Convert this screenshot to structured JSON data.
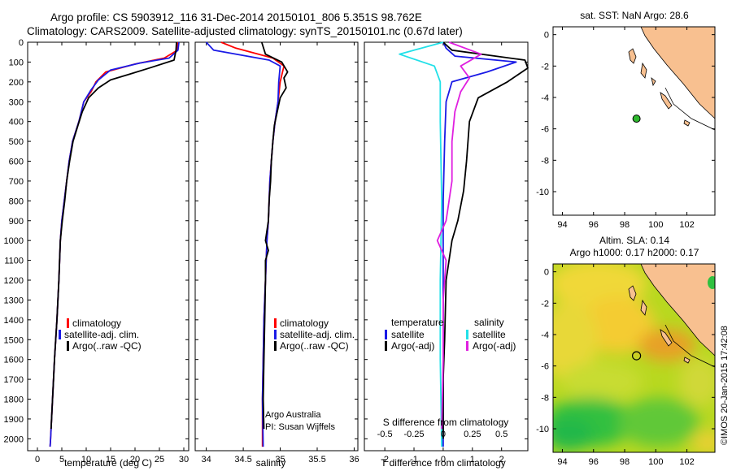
{
  "header": {
    "title_line1": "Argo profile: CS 5903912_116 31-Dec-2014 20150101_806 5.351S 98.762E",
    "title_line2": "Climatology: CARS2009. Satellite-adjusted climatology: synTS_20150101.nc (0.67d later)"
  },
  "colors": {
    "climatology": "#ff0000",
    "satellite": "#1a1ae6",
    "argo": "#000000",
    "salinity_satellite": "#22e0e8",
    "salinity_argo": "#e020e0",
    "land": "#f8c090",
    "dot": "#2eb82e"
  },
  "chart_data": [
    {
      "type": "line",
      "id": "temperature",
      "xlabel": "temperature (deg C)",
      "xlim": [
        -2,
        31
      ],
      "xticks": [
        0,
        5,
        10,
        15,
        20,
        25,
        30
      ],
      "ylim": [
        2060,
        0
      ],
      "yticks": [
        0,
        100,
        200,
        300,
        400,
        500,
        600,
        700,
        800,
        900,
        1000,
        1100,
        1200,
        1300,
        1400,
        1500,
        1600,
        1700,
        1800,
        1900,
        2000
      ],
      "legend": [
        "climatology",
        "satellite-adj. clim.",
        "Argo(..raw -QC)"
      ],
      "series": [
        {
          "name": "climatology",
          "color": "#ff0000",
          "points": [
            [
              28.8,
              0
            ],
            [
              28.7,
              40
            ],
            [
              26,
              80
            ],
            [
              20,
              110
            ],
            [
              14,
              150
            ],
            [
              12,
              200
            ],
            [
              11,
              250
            ],
            [
              9.5,
              300
            ],
            [
              8.5,
              400
            ],
            [
              7.2,
              500
            ],
            [
              6.5,
              600
            ],
            [
              6,
              700
            ],
            [
              5.5,
              800
            ],
            [
              5,
              900
            ],
            [
              4.7,
              1000
            ],
            [
              4.4,
              1200
            ],
            [
              4,
              1400
            ],
            [
              3.5,
              1600
            ],
            [
              3.1,
              1800
            ],
            [
              2.7,
              2000
            ],
            [
              2.6,
              2040
            ]
          ]
        },
        {
          "name": "satellite-adj. clim.",
          "color": "#1a1ae6",
          "points": [
            [
              29,
              0
            ],
            [
              28.8,
              40
            ],
            [
              27,
              80
            ],
            [
              21,
              105
            ],
            [
              15,
              140
            ],
            [
              12.5,
              190
            ],
            [
              11,
              240
            ],
            [
              9.5,
              300
            ],
            [
              8.5,
              400
            ],
            [
              7.2,
              500
            ],
            [
              6.5,
              600
            ],
            [
              6,
              700
            ],
            [
              5.5,
              800
            ],
            [
              5,
              900
            ],
            [
              4.7,
              1000
            ],
            [
              4.4,
              1200
            ],
            [
              4,
              1400
            ],
            [
              3.5,
              1600
            ],
            [
              3.1,
              1800
            ],
            [
              2.7,
              2000
            ],
            [
              2.6,
              2040
            ]
          ]
        },
        {
          "name": "Argo(..raw -QC)",
          "color": "#000000",
          "points": [
            [
              28.5,
              0
            ],
            [
              28.4,
              40
            ],
            [
              28,
              90
            ],
            [
              23,
              130
            ],
            [
              19,
              160
            ],
            [
              15,
              190
            ],
            [
              12.5,
              230
            ],
            [
              10.5,
              280
            ],
            [
              9.2,
              350
            ],
            [
              8.3,
              420
            ],
            [
              7.3,
              500
            ],
            [
              6.6,
              600
            ],
            [
              6,
              700
            ],
            [
              5.6,
              800
            ],
            [
              5.1,
              900
            ],
            [
              4.7,
              1000
            ],
            [
              4.4,
              1200
            ],
            [
              4,
              1400
            ],
            [
              3.5,
              1600
            ],
            [
              3.1,
              1800
            ],
            [
              2.8,
              1950
            ]
          ]
        }
      ]
    },
    {
      "type": "line",
      "id": "salinity",
      "xlabel": "salinity",
      "xlim": [
        33.85,
        36.05
      ],
      "xticks": [
        34,
        34.5,
        35,
        35.5,
        36
      ],
      "ylim": [
        2060,
        0
      ],
      "legend": [
        "climatology",
        "satellite-adj. clim.",
        "Argo(..raw -QC)"
      ],
      "annotation": [
        "Argo Australia",
        "PI: Susan Wijffels"
      ],
      "series": [
        {
          "name": "climatology",
          "color": "#ff0000",
          "points": [
            [
              34.2,
              0
            ],
            [
              34.4,
              30
            ],
            [
              34.9,
              80
            ],
            [
              35.05,
              120
            ],
            [
              35.0,
              200
            ],
            [
              34.97,
              300
            ],
            [
              34.93,
              400
            ],
            [
              34.9,
              500
            ],
            [
              34.88,
              600
            ],
            [
              34.86,
              700
            ],
            [
              34.85,
              800
            ],
            [
              34.84,
              900
            ],
            [
              34.82,
              1000
            ],
            [
              34.8,
              1200
            ],
            [
              34.78,
              1400
            ],
            [
              34.77,
              1600
            ],
            [
              34.76,
              1800
            ],
            [
              34.76,
              2040
            ]
          ]
        },
        {
          "name": "satellite-adj. clim.",
          "color": "#1a1ae6",
          "points": [
            [
              34.0,
              0
            ],
            [
              34.1,
              40
            ],
            [
              34.85,
              90
            ],
            [
              35.0,
              120
            ],
            [
              34.98,
              200
            ],
            [
              34.97,
              300
            ],
            [
              34.93,
              400
            ],
            [
              34.9,
              500
            ],
            [
              34.88,
              600
            ],
            [
              34.86,
              700
            ],
            [
              34.85,
              800
            ],
            [
              34.84,
              900
            ],
            [
              34.82,
              1000
            ],
            [
              34.8,
              1200
            ],
            [
              34.78,
              1400
            ],
            [
              34.77,
              1600
            ],
            [
              34.76,
              1800
            ],
            [
              34.77,
              2040
            ]
          ]
        },
        {
          "name": "Argo(..raw -QC)",
          "color": "#000000",
          "points": [
            [
              34.75,
              0
            ],
            [
              34.8,
              60
            ],
            [
              35.02,
              100
            ],
            [
              35.1,
              150
            ],
            [
              35.05,
              180
            ],
            [
              35.08,
              230
            ],
            [
              35.0,
              280
            ],
            [
              34.96,
              350
            ],
            [
              34.92,
              420
            ],
            [
              34.9,
              500
            ],
            [
              34.88,
              600
            ],
            [
              34.87,
              700
            ],
            [
              34.85,
              800
            ],
            [
              34.84,
              900
            ],
            [
              34.8,
              1000
            ],
            [
              34.84,
              1050
            ],
            [
              34.8,
              1100
            ],
            [
              34.8,
              1200
            ],
            [
              34.79,
              1400
            ],
            [
              34.78,
              1600
            ],
            [
              34.77,
              1800
            ],
            [
              34.78,
              1950
            ]
          ]
        }
      ]
    },
    {
      "type": "line",
      "id": "difference",
      "xlabel": "T difference from climatology",
      "xlabel_top": "S difference from climatology",
      "xlim": [
        -2.7,
        2.9
      ],
      "xticks": [
        -2,
        -1,
        0,
        1,
        2
      ],
      "top_ticks": [
        "-0.5",
        "-0.25",
        "0",
        "0.25",
        "0.5"
      ],
      "ylim": [
        2060,
        0
      ],
      "legend_left_title": "temperature",
      "legend_right_title": "salinity",
      "legend_left": [
        "satellite",
        "Argo(-adj)"
      ],
      "legend_right": [
        "satellite",
        "Argo(-adj)"
      ],
      "series": [
        {
          "name": "satellite",
          "group": "temperature",
          "color": "#1a1ae6",
          "points": [
            [
              0,
              0
            ],
            [
              0.1,
              30
            ],
            [
              0.4,
              70
            ],
            [
              2.5,
              100
            ],
            [
              1.5,
              150
            ],
            [
              0.3,
              200
            ],
            [
              0.1,
              300
            ],
            [
              0.05,
              500
            ],
            [
              0,
              800
            ],
            [
              0,
              1200
            ],
            [
              0,
              1600
            ],
            [
              0,
              2040
            ]
          ]
        },
        {
          "name": "Argo(-adj)",
          "group": "temperature",
          "color": "#000000",
          "points": [
            [
              0,
              0
            ],
            [
              0.3,
              40
            ],
            [
              2.8,
              90
            ],
            [
              2.9,
              130
            ],
            [
              2.2,
              200
            ],
            [
              1.2,
              280
            ],
            [
              0.9,
              400
            ],
            [
              0.8,
              600
            ],
            [
              0.7,
              750
            ],
            [
              0.5,
              900
            ],
            [
              0.3,
              1000
            ],
            [
              0.1,
              1200
            ],
            [
              0.05,
              1500
            ],
            [
              0,
              1700
            ],
            [
              0,
              2000
            ]
          ]
        },
        {
          "name": "satellite",
          "group": "salinity",
          "color": "#22e0e8",
          "points": [
            [
              0,
              0
            ],
            [
              -1.5,
              60
            ],
            [
              -0.3,
              120
            ],
            [
              -0.1,
              200
            ],
            [
              -0.1,
              400
            ],
            [
              -0.05,
              800
            ],
            [
              -0.1,
              1200
            ],
            [
              -0.1,
              1600
            ],
            [
              -0.05,
              2040
            ]
          ]
        },
        {
          "name": "Argo(-adj)",
          "group": "salinity",
          "color": "#e020e0",
          "points": [
            [
              0.2,
              0
            ],
            [
              1.3,
              60
            ],
            [
              0.6,
              120
            ],
            [
              0.9,
              180
            ],
            [
              0.6,
              250
            ],
            [
              0.4,
              350
            ],
            [
              0.3,
              500
            ],
            [
              0.3,
              700
            ],
            [
              0.1,
              900
            ],
            [
              -0.2,
              1000
            ],
            [
              0.1,
              1100
            ],
            [
              0,
              1300
            ],
            [
              0,
              1600
            ],
            [
              -0.05,
              1950
            ]
          ]
        }
      ]
    },
    {
      "type": "scatter",
      "id": "map_sst",
      "title": "sat. SST: NaN Argo: 28.6",
      "xlim": [
        93.4,
        103.8
      ],
      "ylim": [
        -11.5,
        0.5
      ],
      "xticks": [
        94,
        96,
        98,
        100,
        102
      ],
      "xticklabels": [
        "94",
        "96",
        "98",
        "100",
        "102"
      ],
      "yticks": [
        0,
        -2,
        -4,
        -6,
        -8,
        -10
      ],
      "points": [
        {
          "lon": 98.762,
          "lat": -5.351
        }
      ]
    },
    {
      "type": "heatmap",
      "id": "map_sla",
      "title_line1": "Altim. SLA: 0.14",
      "title_line2": "Argo h1000: 0.17 h2000: 0.17",
      "xlim": [
        93.4,
        103.8
      ],
      "ylim": [
        -11.5,
        0.5
      ],
      "xticks": [
        94,
        96,
        98,
        100,
        102
      ],
      "xticklabels": [
        "94",
        "96",
        "98",
        "100",
        "102"
      ],
      "yticks": [
        0,
        -2,
        -4,
        -6,
        -8,
        -10
      ],
      "points": [
        {
          "lon": 98.762,
          "lat": -5.351
        }
      ]
    }
  ],
  "credit": "©IMOS 20-Jan-2015 17:42:08"
}
